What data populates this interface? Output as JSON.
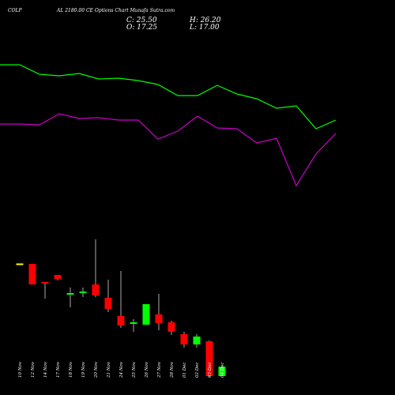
{
  "chart_data": {
    "type": "candlestick",
    "title_symbol": "COLP",
    "title": "AL 2180.00  CE Options  Chart Munafa Sutra.com",
    "ohlc_labels": {
      "close": "C: 25.50",
      "high": "H: 26.20",
      "open": "O: 17.25",
      "low": "L: 17.00"
    },
    "categories": [
      "10 Nov",
      "12 Nov",
      "14 Nov",
      "17 Nov",
      "18 Nov",
      "19 Nov",
      "20 Nov",
      "21 Nov",
      "24 Nov",
      "25 Nov",
      "26 Nov",
      "27 Nov",
      "28 Nov",
      "01 Dec",
      "02 Dec",
      "03 Dec",
      "04 Dec"
    ],
    "candles": [
      {
        "open": 166.5,
        "high": 166.5,
        "low": 166.5,
        "close": 166.5,
        "color": "#ffff00"
      },
      {
        "open": 166.0,
        "high": 166.0,
        "low": 140.0,
        "close": 140.0,
        "color": "#ff0000"
      },
      {
        "open": 143.0,
        "high": 143.0,
        "low": 122.0,
        "close": 141.0,
        "color": "#ff0000"
      },
      {
        "open": 152.0,
        "high": 152.0,
        "low": 145.0,
        "close": 147.0,
        "color": "#ff0000"
      },
      {
        "open": 129.0,
        "high": 136.0,
        "low": 111.0,
        "close": 128.0,
        "color": "#00ff00"
      },
      {
        "open": 130.0,
        "high": 136.0,
        "low": 124.0,
        "close": 131.0,
        "color": "#00ff00"
      },
      {
        "open": 140.0,
        "high": 197.0,
        "low": 124.0,
        "close": 126.0,
        "color": "#ff0000"
      },
      {
        "open": 123.0,
        "high": 146.0,
        "low": 105.0,
        "close": 109.0,
        "color": "#ff0000"
      },
      {
        "open": 100.0,
        "high": 157.0,
        "low": 85.0,
        "close": 88.0,
        "color": "#ff0000"
      },
      {
        "open": 91.0,
        "high": 96.0,
        "low": 80.0,
        "close": 92.0,
        "color": "#00ff00"
      },
      {
        "open": 89.0,
        "high": 115.0,
        "low": 89.0,
        "close": 115.0,
        "color": "#00ff00"
      },
      {
        "open": 102.0,
        "high": 128.0,
        "low": 82.0,
        "close": 91.0,
        "color": "#ff0000"
      },
      {
        "open": 92.0,
        "high": 94.0,
        "low": 76.0,
        "close": 80.0,
        "color": "#ff0000"
      },
      {
        "open": 77.0,
        "high": 80.0,
        "low": 60.0,
        "close": 64.0,
        "color": "#ff0000"
      },
      {
        "open": 64.0,
        "high": 77.0,
        "low": 60.0,
        "close": 74.0,
        "color": "#00ff00"
      },
      {
        "open": 68.0,
        "high": 69.0,
        "low": 23.0,
        "close": 24.0,
        "color": "#ff0000"
      },
      {
        "open": 24.0,
        "high": 36.0,
        "low": 24.0,
        "close": 36.0,
        "color": "#00ff00"
      }
    ],
    "overlays": [
      {
        "color": "#00ff00",
        "x": [
          0,
          1,
          2,
          3,
          4,
          5,
          6,
          7,
          8,
          9,
          10,
          11,
          12,
          13,
          14,
          15,
          16,
          17
        ],
        "values": [
          418,
          418,
          406,
          404,
          407,
          400,
          401,
          398,
          393,
          379,
          379,
          392,
          381,
          375,
          363,
          366,
          337,
          348
        ]
      },
      {
        "color": "#cc00cc",
        "x": [
          0,
          1,
          2,
          3,
          4,
          5,
          6,
          7,
          8,
          9,
          10,
          11,
          12,
          13,
          14,
          15,
          16,
          17
        ],
        "values": [
          343,
          343,
          342,
          356,
          350,
          351,
          348,
          348,
          324,
          334,
          353,
          338,
          337,
          319,
          325,
          265,
          305,
          331
        ]
      }
    ],
    "ylim": [
      0,
      500
    ],
    "grid": false,
    "legend": "none"
  }
}
